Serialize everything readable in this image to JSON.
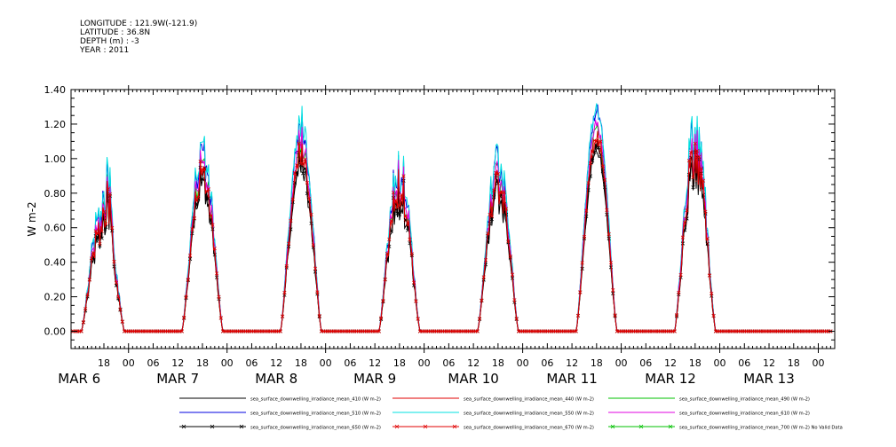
{
  "header": {
    "longitude": "LONGITUDE : 121.9W(-121.9)",
    "latitude": "LATITUDE : 36.8N",
    "depth": "DEPTH (m) : -3",
    "year": "YEAR : 2011"
  },
  "chart_data": {
    "type": "line",
    "title": "",
    "xlabel": "",
    "ylabel": "W m-2",
    "ylim": [
      -0.1,
      1.4
    ],
    "yticks": [
      0.0,
      0.2,
      0.4,
      0.6,
      0.8,
      1.0,
      1.2,
      1.4
    ],
    "ytick_labels": [
      "0.00",
      "0.20",
      "0.40",
      "0.60",
      "0.80",
      "1.00",
      "1.20",
      "1.40"
    ],
    "xlim_hours": [
      10,
      196
    ],
    "x_units": "hours after 00 on MAR 6 2011",
    "hour_ticks": [
      {
        "h": 18,
        "label": "18"
      },
      {
        "h": 24,
        "label": "00"
      },
      {
        "h": 30,
        "label": "06"
      },
      {
        "h": 36,
        "label": "12"
      },
      {
        "h": 42,
        "label": "18"
      },
      {
        "h": 48,
        "label": "00"
      },
      {
        "h": 54,
        "label": "06"
      },
      {
        "h": 60,
        "label": "12"
      },
      {
        "h": 66,
        "label": "18"
      },
      {
        "h": 72,
        "label": "00"
      },
      {
        "h": 78,
        "label": "06"
      },
      {
        "h": 84,
        "label": "12"
      },
      {
        "h": 90,
        "label": "18"
      },
      {
        "h": 96,
        "label": "00"
      },
      {
        "h": 102,
        "label": "06"
      },
      {
        "h": 108,
        "label": "12"
      },
      {
        "h": 114,
        "label": "18"
      },
      {
        "h": 120,
        "label": "00"
      },
      {
        "h": 126,
        "label": "06"
      },
      {
        "h": 132,
        "label": "12"
      },
      {
        "h": 138,
        "label": "18"
      },
      {
        "h": 144,
        "label": "00"
      },
      {
        "h": 150,
        "label": "06"
      },
      {
        "h": 156,
        "label": "12"
      },
      {
        "h": 162,
        "label": "18"
      },
      {
        "h": 168,
        "label": "00"
      },
      {
        "h": 174,
        "label": "06"
      },
      {
        "h": 180,
        "label": "12"
      },
      {
        "h": 186,
        "label": "18"
      },
      {
        "h": 192,
        "label": "00"
      }
    ],
    "day_labels": [
      {
        "h": 12,
        "label": "MAR 6"
      },
      {
        "h": 36,
        "label": "MAR 7"
      },
      {
        "h": 60,
        "label": "MAR 8"
      },
      {
        "h": 84,
        "label": "MAR 9"
      },
      {
        "h": 108,
        "label": "MAR 10"
      },
      {
        "h": 132,
        "label": "MAR 11"
      },
      {
        "h": 156,
        "label": "MAR 12"
      },
      {
        "h": 180,
        "label": "MAR 13"
      }
    ],
    "days": [
      {
        "start": 12.5,
        "end": 23.0,
        "peak": 0.8,
        "noise": 0.3
      },
      {
        "start": 37.0,
        "end": 47.0,
        "peak": 1.1,
        "noise": 0.2
      },
      {
        "start": 61.0,
        "end": 71.0,
        "peak": 1.22,
        "noise": 0.14
      },
      {
        "start": 85.0,
        "end": 95.0,
        "peak": 1.05,
        "noise": 0.28
      },
      {
        "start": 109.0,
        "end": 119.0,
        "peak": 1.05,
        "noise": 0.22
      },
      {
        "start": 133.0,
        "end": 143.0,
        "peak": 1.25,
        "noise": 0.03
      },
      {
        "start": 157.0,
        "end": 167.0,
        "peak": 1.24,
        "noise": 0.24
      }
    ],
    "series": [
      {
        "name": "sea_surface_downwelling_irradiance_mean_410 (W m-2)",
        "color": "#000000",
        "scale": 0.85,
        "marker": "none"
      },
      {
        "name": "sea_surface_downwelling_irradiance_mean_440 (W m-2)",
        "color": "#e00000",
        "scale": 0.9,
        "marker": "none"
      },
      {
        "name": "sea_surface_downwelling_irradiance_mean_490 (W m-2)",
        "color": "#00c000",
        "scale": 0.95,
        "marker": "none"
      },
      {
        "name": "sea_surface_downwelling_irradiance_mean_510 (W m-2)",
        "color": "#0000e0",
        "scale": 1.04,
        "marker": "none"
      },
      {
        "name": "sea_surface_downwelling_irradiance_mean_550 (W m-2)",
        "color": "#00e0e0",
        "scale": 1.06,
        "marker": "none"
      },
      {
        "name": "sea_surface_downwelling_irradiance_mean_610 (W m-2)",
        "color": "#e000e0",
        "scale": 0.97,
        "marker": "none"
      },
      {
        "name": "sea_surface_downwelling_irradiance_mean_650 (W m-2)",
        "color": "#000000",
        "scale": 0.88,
        "marker": "x"
      },
      {
        "name": "sea_surface_downwelling_irradiance_mean_670 (W m-2)",
        "color": "#e00000",
        "scale": 0.92,
        "marker": "x"
      },
      {
        "name": "sea_surface_downwelling_irradiance_mean_700 (W m-2) No Valid Data",
        "color": "#00c000",
        "scale": 0.0,
        "marker": "x",
        "valid": false
      }
    ]
  }
}
